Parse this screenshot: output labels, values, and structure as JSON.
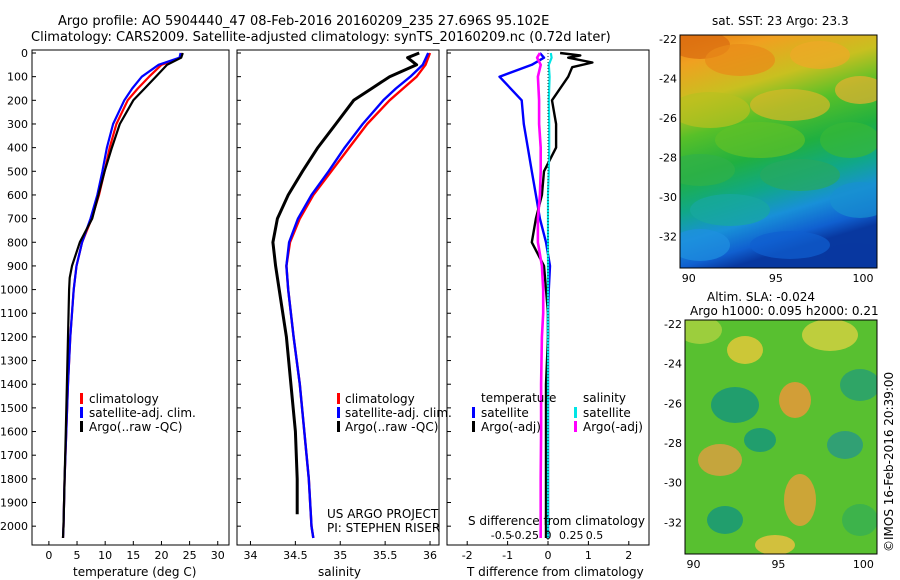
{
  "title_line1": "Argo profile: AO 5904440_47 08-Feb-2016 20160209_235 27.696S 95.102E",
  "title_line2": "Climatology: CARS2009. Satellite-adjusted climatology: synTS_20160209.nc (0.72d later)",
  "depth_ticks": [
    "0",
    "100",
    "200",
    "300",
    "400",
    "500",
    "600",
    "700",
    "800",
    "900",
    "1000",
    "1100",
    "1200",
    "1300",
    "1400",
    "1500",
    "1600",
    "1700",
    "1800",
    "1900",
    "2000"
  ],
  "colors": {
    "climatology": "#ff0000",
    "satellite": "#0000ff",
    "argo": "#000000",
    "sat_sal": "#00e5e5",
    "argo_sal": "#ff00ff"
  },
  "panels": {
    "temperature": {
      "xlabel": "temperature (deg C)",
      "xticks": [
        "0",
        "5",
        "10",
        "15",
        "20",
        "25",
        "30"
      ],
      "legend": [
        "climatology",
        "satellite-adj. clim.",
        "Argo(..raw -QC)"
      ]
    },
    "salinity": {
      "xlabel": "salinity",
      "xticks": [
        "34",
        "34.5",
        "35",
        "35.5",
        "36"
      ],
      "legend": [
        "climatology",
        "satellite-adj. clim.",
        "Argo(..raw -QC)"
      ],
      "credit1": "US ARGO PROJECT",
      "credit2": "PI: STEPHEN RISER"
    },
    "difference": {
      "xlabel_bottom": "T difference from climatology",
      "xlabel_top": "S difference from climatology",
      "xticks_T": [
        "-2",
        "-1",
        "0",
        "1",
        "2"
      ],
      "xticks_S": [
        "-0.5",
        "-0.25",
        "0",
        "0.25",
        "0.5"
      ],
      "legend_temp_title": "temperature",
      "legend_sal_title": "salinity",
      "legend_temp": [
        "satellite",
        "Argo(-adj)"
      ],
      "legend_sal": [
        "satellite",
        "Argo(-adj)"
      ]
    },
    "sst_map": {
      "title": "sat. SST: 23  Argo: 23.3",
      "yticks": [
        "-22",
        "-24",
        "-26",
        "-28",
        "-30",
        "-32"
      ],
      "xticks": [
        "90",
        "95",
        "100"
      ]
    },
    "sla_map": {
      "title1": "Altim. SLA: -0.024",
      "title2": "Argo h1000: 0.095 h2000: 0.21",
      "yticks": [
        "-22",
        "-24",
        "-26",
        "-28",
        "-30",
        "-32"
      ],
      "xticks": [
        "90",
        "95",
        "100"
      ]
    }
  },
  "watermark": "©IMOS 16-Feb-2016 20:39:00",
  "chart_data": [
    {
      "type": "line",
      "title": "",
      "xlabel": "temperature (deg C)",
      "ylabel": "",
      "xlim": [
        -3,
        32
      ],
      "ylim": [
        2080,
        0
      ],
      "series": [
        {
          "name": "climatology",
          "depth": [
            0,
            20,
            50,
            100,
            150,
            200,
            300,
            400,
            500,
            600,
            700,
            800,
            900,
            1000,
            1200,
            1400,
            1600,
            1800,
            2000,
            2050
          ],
          "values": [
            23.6,
            23.4,
            20.0,
            17.8,
            15.8,
            14.0,
            12.0,
            10.8,
            9.9,
            8.9,
            7.6,
            5.9,
            4.9,
            4.4,
            3.8,
            3.4,
            3.1,
            2.8,
            2.6,
            2.5
          ]
        },
        {
          "name": "satellite-adj. clim.",
          "depth": [
            0,
            20,
            50,
            100,
            150,
            200,
            300,
            400,
            500,
            600,
            700,
            800,
            900,
            1000,
            1200,
            1400,
            1600,
            1800,
            2000,
            2050
          ],
          "values": [
            23.4,
            23.2,
            19.5,
            16.5,
            14.8,
            13.4,
            11.4,
            10.3,
            9.5,
            8.6,
            7.4,
            5.9,
            4.9,
            4.4,
            3.8,
            3.4,
            3.1,
            2.8,
            2.6,
            2.5
          ]
        },
        {
          "name": "Argo(..raw -QC)",
          "depth": [
            0,
            20,
            50,
            100,
            150,
            200,
            300,
            400,
            500,
            600,
            700,
            800,
            900,
            950,
            1000,
            1200,
            1400,
            1600,
            1800,
            2000,
            2050
          ],
          "values": [
            23.8,
            23.5,
            21.0,
            19.0,
            17.0,
            15.0,
            12.6,
            11.2,
            9.9,
            8.8,
            7.7,
            5.5,
            4.1,
            3.7,
            3.6,
            3.4,
            3.2,
            3.0,
            2.8,
            2.6,
            2.5
          ]
        }
      ]
    },
    {
      "type": "line",
      "title": "",
      "xlabel": "salinity",
      "ylabel": "",
      "xlim": [
        33.85,
        36.1
      ],
      "ylim": [
        2080,
        0
      ],
      "series": [
        {
          "name": "climatology",
          "depth": [
            0,
            50,
            100,
            150,
            200,
            300,
            400,
            500,
            600,
            700,
            800,
            900,
            1000,
            1200,
            1400,
            1600,
            1800,
            2000,
            2050
          ],
          "values": [
            36.0,
            35.95,
            35.85,
            35.7,
            35.55,
            35.3,
            35.1,
            34.9,
            34.7,
            34.55,
            34.44,
            34.4,
            34.42,
            34.48,
            34.55,
            34.6,
            34.65,
            34.68,
            34.7
          ]
        },
        {
          "name": "satellite-adj. clim.",
          "depth": [
            0,
            50,
            100,
            150,
            200,
            300,
            400,
            500,
            600,
            700,
            800,
            900,
            1000,
            1200,
            1400,
            1600,
            1800,
            2000,
            2050
          ],
          "values": [
            35.98,
            35.92,
            35.78,
            35.62,
            35.48,
            35.25,
            35.05,
            34.87,
            34.68,
            34.53,
            34.43,
            34.4,
            34.42,
            34.48,
            34.55,
            34.6,
            34.65,
            34.68,
            34.7
          ]
        },
        {
          "name": "Argo(..raw -QC)",
          "depth": [
            0,
            20,
            50,
            100,
            150,
            200,
            300,
            400,
            500,
            600,
            700,
            800,
            900,
            1000,
            1200,
            1400,
            1600,
            1800,
            1900,
            1950
          ],
          "values": [
            35.88,
            35.75,
            35.85,
            35.55,
            35.35,
            35.15,
            34.95,
            34.75,
            34.58,
            34.42,
            34.3,
            34.25,
            34.28,
            34.32,
            34.4,
            34.45,
            34.5,
            34.52,
            34.52,
            34.52
          ]
        }
      ]
    },
    {
      "type": "line",
      "title": "",
      "xlabel": "T difference from climatology",
      "ylabel": "",
      "xlim": [
        -2.5,
        2.5
      ],
      "ylim": [
        2080,
        0
      ],
      "series": [
        {
          "name": "temperature satellite",
          "depth": [
            0,
            20,
            50,
            100,
            200,
            300,
            400,
            500,
            600,
            700,
            800,
            900,
            1000,
            1100,
            1200,
            1400,
            1600,
            1800,
            2000,
            2050
          ],
          "values": [
            -0.2,
            -0.1,
            -0.4,
            -1.2,
            -0.65,
            -0.6,
            -0.5,
            -0.4,
            -0.3,
            -0.2,
            -0.05,
            0.05,
            0.02,
            0.0,
            0.0,
            0.0,
            0.0,
            0.0,
            0.0,
            0.0
          ]
        },
        {
          "name": "temperature Argo(-adj)",
          "depth": [
            0,
            10,
            20,
            40,
            60,
            100,
            200,
            300,
            400,
            500,
            600,
            700,
            800,
            900,
            1000,
            1100,
            1200,
            1400,
            1600,
            1800,
            2000,
            2050
          ],
          "values": [
            0.3,
            0.8,
            0.5,
            1.1,
            0.6,
            0.5,
            0.1,
            0.2,
            0.2,
            -0.1,
            -0.15,
            -0.3,
            -0.4,
            -0.1,
            -0.05,
            0.0,
            0.0,
            -0.05,
            -0.05,
            -0.05,
            -0.05,
            -0.05
          ]
        },
        {
          "name": "salinity satellite",
          "depth": [
            0,
            20,
            50,
            100,
            200,
            300,
            400,
            500,
            600,
            700,
            800,
            900,
            1000,
            1200,
            1400,
            1600,
            1800,
            2000,
            2050
          ],
          "values": [
            0.07,
            0.09,
            0.02,
            0.04,
            0.02,
            0.03,
            0.03,
            0.02,
            0.0,
            0.0,
            0.0,
            0.0,
            0.0,
            0.0,
            0.0,
            0.0,
            0.0,
            0.0,
            0.0
          ]
        },
        {
          "name": "salinity Argo(-adj)",
          "depth": [
            0,
            20,
            50,
            100,
            200,
            300,
            400,
            500,
            600,
            700,
            800,
            900,
            1000,
            1100,
            1200,
            1400,
            1600,
            1800,
            2000,
            2050
          ],
          "values": [
            -0.2,
            -0.27,
            -0.18,
            -0.25,
            -0.22,
            -0.22,
            -0.18,
            -0.18,
            -0.2,
            -0.25,
            -0.25,
            -0.15,
            -0.12,
            -0.12,
            -0.15,
            -0.17,
            -0.17,
            -0.18,
            -0.18,
            -0.18
          ]
        }
      ]
    },
    {
      "type": "heatmap",
      "title": "sat. SST: 23  Argo: 23.3",
      "xlim": [
        89.5,
        100.8
      ],
      "ylim": [
        -33.6,
        -21.8
      ],
      "xticks": [
        90,
        95,
        100
      ],
      "yticks": [
        -22,
        -24,
        -26,
        -28,
        -30,
        -32
      ]
    },
    {
      "type": "heatmap",
      "title": "Altim. SLA: -0.024  Argo h1000: 0.095 h2000: 0.21",
      "xlim": [
        89.5,
        100.8
      ],
      "ylim": [
        -33.6,
        -21.8
      ],
      "xticks": [
        90,
        95,
        100
      ],
      "yticks": [
        -22,
        -24,
        -26,
        -28,
        -30,
        -32
      ]
    }
  ]
}
